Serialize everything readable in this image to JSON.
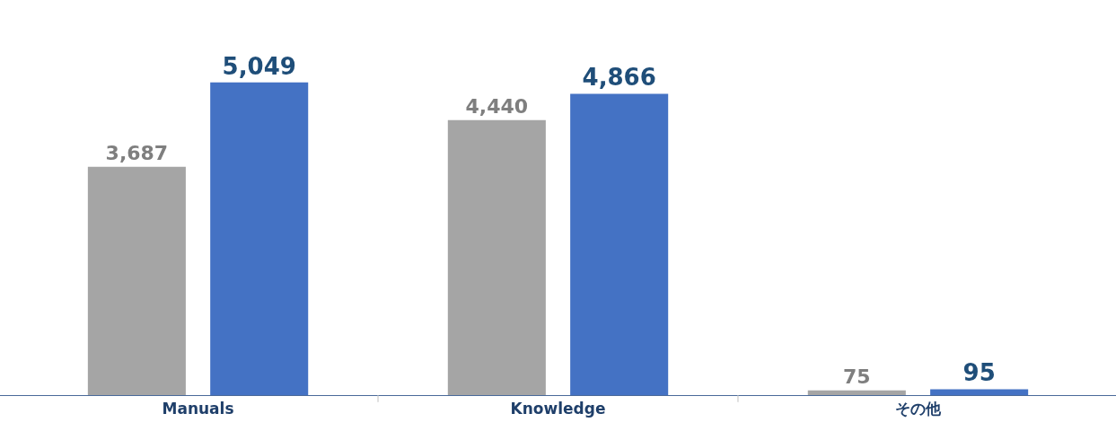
{
  "chart_data": {
    "type": "bar",
    "categories": [
      "Manuals",
      "Knowledge",
      "その他"
    ],
    "series": [
      {
        "color": "#a5a5a5",
        "values": [
          3687,
          4440,
          75
        ],
        "value_labels": [
          "3,687",
          "4,440",
          "75"
        ]
      },
      {
        "color": "#4472c4",
        "values": [
          5049,
          4866,
          95
        ],
        "value_labels": [
          "5,049",
          "4,866",
          "95"
        ]
      }
    ]
  }
}
